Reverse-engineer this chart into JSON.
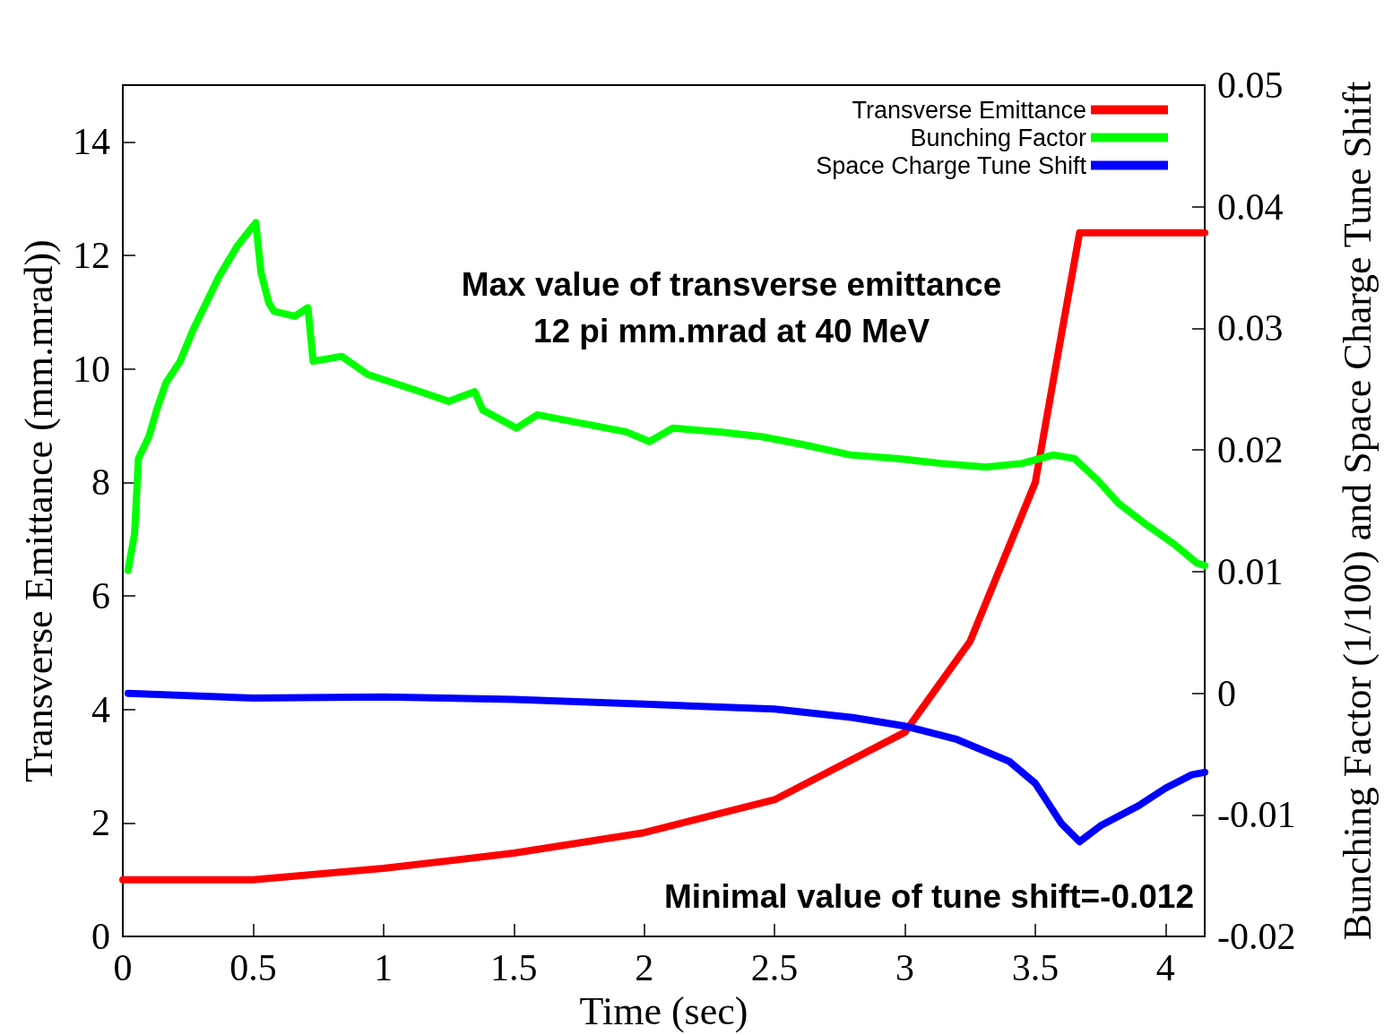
{
  "chart_data": {
    "type": "line",
    "xlabel": "Time (sec)",
    "ylabel": "Transverse Emittance (mm.mrad))",
    "y2label": "Bunching Factor (1/100) and Space Charge Tune Shift",
    "annotations": [
      "Max value of transverse emittance\n12 pi mm.mrad at 40 MeV",
      "Minimal value of tune shift=-0.012"
    ],
    "xlim": [
      0,
      4.15
    ],
    "xticks": [
      0,
      0.5,
      1,
      1.5,
      2,
      2.5,
      3,
      3.5,
      4
    ],
    "ylim": [
      0,
      15
    ],
    "yticks": [
      0,
      2,
      4,
      6,
      8,
      10,
      12,
      14
    ],
    "y2lim": [
      -0.02,
      0.05
    ],
    "y2ticks": [
      -0.02,
      -0.01,
      0,
      0.01,
      0.02,
      0.03,
      0.04,
      0.05
    ],
    "grid": false,
    "legend": "top right",
    "series": [
      {
        "name": "Transverse Emittance",
        "color": "#ff0000",
        "x": [
          0,
          0.5,
          1,
          1.5,
          2,
          2.5,
          3,
          3.25,
          3.5,
          3.6,
          3.67,
          4.15
        ],
        "values": [
          1.0,
          1.0,
          1.2,
          1.47,
          1.83,
          2.41,
          3.6,
          5.2,
          8.0,
          10.6,
          12.4,
          12.4
        ]
      },
      {
        "name": "Bunching Factor",
        "color": "#00ff00",
        "axis": "y2",
        "x": [
          0.02,
          0.045,
          0.06,
          0.1,
          0.13,
          0.165,
          0.22,
          0.27,
          0.32,
          0.37,
          0.44,
          0.51,
          0.53,
          0.56,
          0.58,
          0.66,
          0.71,
          0.73,
          0.84,
          0.94,
          1.04,
          1.14,
          1.25,
          1.35,
          1.38,
          1.51,
          1.59,
          1.76,
          1.93,
          2.02,
          2.11,
          2.28,
          2.45,
          2.62,
          2.79,
          2.97,
          3.14,
          3.31,
          3.45,
          3.57,
          3.65,
          3.74,
          3.82,
          3.93,
          4.03,
          4.12,
          4.15
        ],
        "values": [
          0.0101,
          0.0131,
          0.0193,
          0.0211,
          0.0233,
          0.0255,
          0.0273,
          0.0299,
          0.0321,
          0.0343,
          0.0368,
          0.0387,
          0.0346,
          0.0321,
          0.0314,
          0.031,
          0.0317,
          0.0273,
          0.0277,
          0.0262,
          0.0255,
          0.0248,
          0.024,
          0.0248,
          0.0233,
          0.0218,
          0.0229,
          0.0222,
          0.0215,
          0.0207,
          0.0218,
          0.0215,
          0.0211,
          0.0204,
          0.0196,
          0.0193,
          0.0189,
          0.0186,
          0.0189,
          0.0196,
          0.0193,
          0.0175,
          0.0156,
          0.0138,
          0.0123,
          0.0107,
          0.0105
        ]
      },
      {
        "name": "Space Charge Tune Shift",
        "color": "#0000ff",
        "axis": "y2",
        "x": [
          0.02,
          0.5,
          1,
          1.5,
          2,
          2.5,
          2.8,
          3,
          3.2,
          3.4,
          3.5,
          3.6,
          3.67,
          3.75,
          3.9,
          4.0,
          4.1,
          4.15
        ],
        "values": [
          0.0,
          -0.0004,
          -0.0003,
          -0.0005,
          -0.0009,
          -0.0013,
          -0.002,
          -0.0027,
          -0.0038,
          -0.0056,
          -0.0074,
          -0.0107,
          -0.0122,
          -0.0109,
          -0.0092,
          -0.0078,
          -0.0067,
          -0.0065
        ]
      }
    ]
  }
}
